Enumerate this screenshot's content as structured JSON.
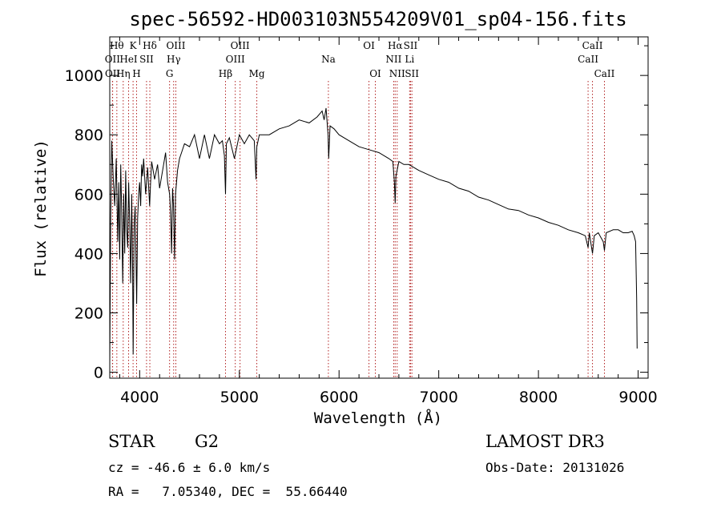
{
  "chart_data": {
    "type": "line",
    "title": "spec-56592-HD003103N554209V01_sp04-156.fits",
    "xlabel": "Wavelength (Å)",
    "ylabel": "Flux (relative)",
    "xlim": [
      3700,
      9100
    ],
    "ylim": [
      -20,
      1130
    ],
    "xticks": [
      4000,
      5000,
      6000,
      7000,
      8000,
      9000
    ],
    "yticks": [
      0,
      200,
      400,
      600,
      800,
      1000
    ],
    "series": [
      {
        "name": "spectrum",
        "x": [
          3700,
          3710,
          3720,
          3735,
          3750,
          3765,
          3780,
          3790,
          3800,
          3810,
          3820,
          3830,
          3840,
          3850,
          3860,
          3870,
          3880,
          3890,
          3900,
          3910,
          3920,
          3930,
          3935,
          3945,
          3955,
          3965,
          3970,
          3980,
          3990,
          4000,
          4010,
          4020,
          4030,
          4040,
          4060,
          4080,
          4100,
          4110,
          4120,
          4150,
          4180,
          4200,
          4230,
          4260,
          4280,
          4300,
          4310,
          4320,
          4330,
          4340,
          4350,
          4360,
          4380,
          4400,
          4420,
          4450,
          4500,
          4550,
          4600,
          4650,
          4700,
          4750,
          4800,
          4830,
          4850,
          4861,
          4870,
          4900,
          4950,
          5000,
          5050,
          5100,
          5150,
          5167,
          5175,
          5200,
          5300,
          5400,
          5500,
          5600,
          5700,
          5780,
          5830,
          5850,
          5870,
          5890,
          5896,
          5910,
          5950,
          6000,
          6100,
          6200,
          6300,
          6400,
          6500,
          6540,
          6555,
          6563,
          6570,
          6600,
          6650,
          6700,
          6800,
          6900,
          7000,
          7100,
          7200,
          7300,
          7400,
          7500,
          7600,
          7700,
          7800,
          7900,
          8000,
          8100,
          8200,
          8300,
          8400,
          8470,
          8498,
          8510,
          8542,
          8560,
          8600,
          8650,
          8662,
          8680,
          8750,
          8800,
          8850,
          8900,
          8940,
          8960,
          8975,
          8985,
          8990
        ],
        "values": [
          30,
          520,
          780,
          650,
          560,
          720,
          440,
          640,
          380,
          700,
          540,
          300,
          600,
          400,
          680,
          480,
          420,
          640,
          500,
          300,
          600,
          330,
          60,
          500,
          560,
          340,
          230,
          520,
          600,
          640,
          560,
          700,
          660,
          720,
          600,
          690,
          560,
          640,
          710,
          650,
          700,
          620,
          680,
          740,
          640,
          600,
          540,
          400,
          620,
          560,
          380,
          600,
          680,
          720,
          740,
          770,
          760,
          800,
          720,
          800,
          720,
          800,
          770,
          780,
          730,
          600,
          770,
          790,
          720,
          800,
          770,
          800,
          780,
          650,
          760,
          800,
          800,
          820,
          830,
          850,
          840,
          860,
          880,
          850,
          890,
          800,
          720,
          830,
          820,
          800,
          780,
          760,
          750,
          740,
          720,
          710,
          640,
          570,
          660,
          710,
          700,
          700,
          680,
          665,
          650,
          640,
          620,
          610,
          590,
          580,
          565,
          550,
          545,
          530,
          520,
          505,
          495,
          480,
          470,
          460,
          420,
          470,
          400,
          460,
          470,
          440,
          410,
          470,
          480,
          480,
          470,
          470,
          475,
          460,
          440,
          250,
          80
        ]
      }
    ],
    "spectral_lines": [
      {
        "wavelength": 3727,
        "label": "OII",
        "row": 2
      },
      {
        "wavelength": 3729,
        "label": "OII",
        "row": 3
      },
      {
        "wavelength": 3771,
        "label": "Hθ",
        "row": 1
      },
      {
        "wavelength": 3835,
        "label": "Hη",
        "row": 3
      },
      {
        "wavelength": 3889,
        "label": "HeI",
        "row": 2
      },
      {
        "wavelength": 3934,
        "label": "K",
        "row": 1
      },
      {
        "wavelength": 3969,
        "label": "H",
        "row": 3
      },
      {
        "wavelength": 4069,
        "label": "SII",
        "row": 2
      },
      {
        "wavelength": 4102,
        "label": "Hδ",
        "row": 1
      },
      {
        "wavelength": 4300,
        "label": "G",
        "row": 3
      },
      {
        "wavelength": 4341,
        "label": "Hγ",
        "row": 2
      },
      {
        "wavelength": 4363,
        "label": "OIII",
        "row": 1
      },
      {
        "wavelength": 4861,
        "label": "Hβ",
        "row": 3
      },
      {
        "wavelength": 4959,
        "label": "OIII",
        "row": 2
      },
      {
        "wavelength": 5007,
        "label": "OIII",
        "row": 1
      },
      {
        "wavelength": 5175,
        "label": "Mg",
        "row": 3
      },
      {
        "wavelength": 5893,
        "label": "Na",
        "row": 2
      },
      {
        "wavelength": 6300,
        "label": "OI",
        "row": 1
      },
      {
        "wavelength": 6364,
        "label": "OI",
        "row": 3
      },
      {
        "wavelength": 6548,
        "label": "NII",
        "row": 2
      },
      {
        "wavelength": 6563,
        "label": "Hα",
        "row": 1
      },
      {
        "wavelength": 6583,
        "label": "NII",
        "row": 3
      },
      {
        "wavelength": 6708,
        "label": "Li",
        "row": 2
      },
      {
        "wavelength": 6717,
        "label": "SII",
        "row": 1
      },
      {
        "wavelength": 6731,
        "label": "SII",
        "row": 3
      },
      {
        "wavelength": 8498,
        "label": "CaII",
        "row": 2
      },
      {
        "wavelength": 8542,
        "label": "CaII",
        "row": 1
      },
      {
        "wavelength": 8662,
        "label": "CaII",
        "row": 3
      }
    ]
  },
  "info": {
    "object_class": "STAR",
    "subclass": "G2",
    "survey": "LAMOST DR3",
    "redshift": "cz = -46.6 ± 6.0 km/s",
    "obs_date": "Obs-Date: 20131026",
    "coords": "RA =   7.05340, DEC =  55.66440"
  },
  "colors": {
    "spectrum": "#000000",
    "line_marker": "#b22222",
    "axis": "#000000"
  }
}
